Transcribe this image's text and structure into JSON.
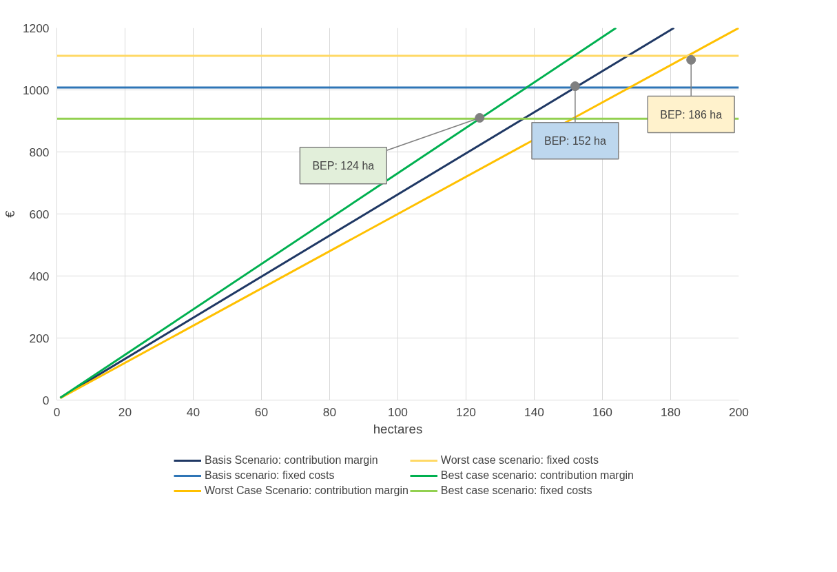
{
  "chart_data": {
    "type": "line",
    "xlabel": "hectares",
    "ylabel": "€",
    "xlim": [
      0,
      200
    ],
    "ylim": [
      0,
      1200
    ],
    "xticks": [
      0,
      20,
      40,
      60,
      80,
      100,
      120,
      140,
      160,
      180,
      200
    ],
    "yticks": [
      0,
      200,
      400,
      600,
      800,
      1000,
      1200
    ],
    "grid": true,
    "legend": "bottom",
    "line_style": "solid",
    "marker": "none",
    "series": [
      {
        "name": "Basis Scenario: contribution margin",
        "color": "#1f3864",
        "x": [
          1,
          181
        ],
        "values": [
          7,
          1200
        ]
      },
      {
        "name": "Basis scenario: fixed costs",
        "color": "#2e75b6",
        "x": [
          0,
          200
        ],
        "values": [
          1008,
          1008
        ]
      },
      {
        "name": "Worst Case Scenario: contribution margin",
        "color": "#ffc000",
        "x": [
          1,
          200
        ],
        "values": [
          6,
          1200
        ]
      },
      {
        "name": "Worst case scenario: fixed costs",
        "color": "#ffd966",
        "x": [
          0,
          200
        ],
        "values": [
          1110,
          1110
        ]
      },
      {
        "name": "Best case scenario: contribution margin",
        "color": "#00b050",
        "x": [
          1,
          164
        ],
        "values": [
          7,
          1200
        ]
      },
      {
        "name": "Best case scenario: fixed costs",
        "color": "#92d050",
        "x": [
          0,
          200
        ],
        "values": [
          907,
          907
        ]
      }
    ],
    "annotations": [
      {
        "text": "BEP: 124 ha",
        "x": 124,
        "y": 910
      },
      {
        "text": "BEP: 152 ha",
        "x": 152,
        "y": 1012
      },
      {
        "text": "BEP: 186 ha",
        "x": 186,
        "y": 1097
      }
    ]
  }
}
